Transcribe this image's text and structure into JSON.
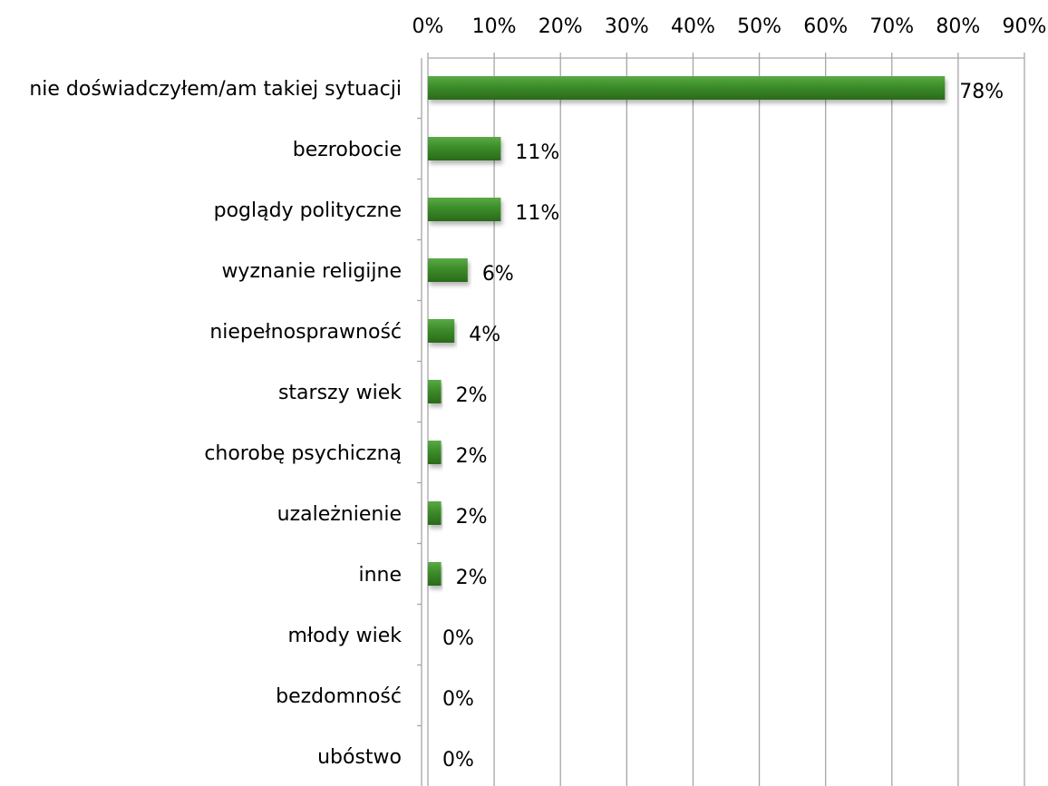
{
  "chart_data": {
    "type": "bar",
    "orientation": "horizontal",
    "categories": [
      "nie doświadczyłem/am takiej sytuacji",
      "bezrobocie",
      "poglądy polityczne",
      "wyznanie religijne",
      "niepełnosprawność",
      "starszy wiek",
      "chorobę psychiczną",
      "uzależnienie",
      "inne",
      "młody wiek",
      "bezdomność",
      "ubóstwo"
    ],
    "values": [
      78,
      11,
      11,
      6,
      4,
      2,
      2,
      2,
      2,
      0,
      0,
      0
    ],
    "value_labels": [
      "78%",
      "11%",
      "11%",
      "6%",
      "4%",
      "2%",
      "2%",
      "2%",
      "2%",
      "0%",
      "0%",
      "0%"
    ],
    "xlim": [
      0,
      90
    ],
    "x_ticks": [
      0,
      10,
      20,
      30,
      40,
      50,
      60,
      70,
      80,
      90
    ],
    "x_tick_labels": [
      "0%",
      "10%",
      "20%",
      "30%",
      "40%",
      "50%",
      "60%",
      "70%",
      "80%",
      "90%"
    ],
    "x_axis_position": "top",
    "grid": true,
    "legend": "none",
    "title": "",
    "xlabel": "",
    "ylabel": "",
    "bar_color": "#3c8c2a",
    "bar_color_dark": "#2a6a1a",
    "bar_color_light": "#5aaa45",
    "grid_color": "#a6a6a6"
  }
}
